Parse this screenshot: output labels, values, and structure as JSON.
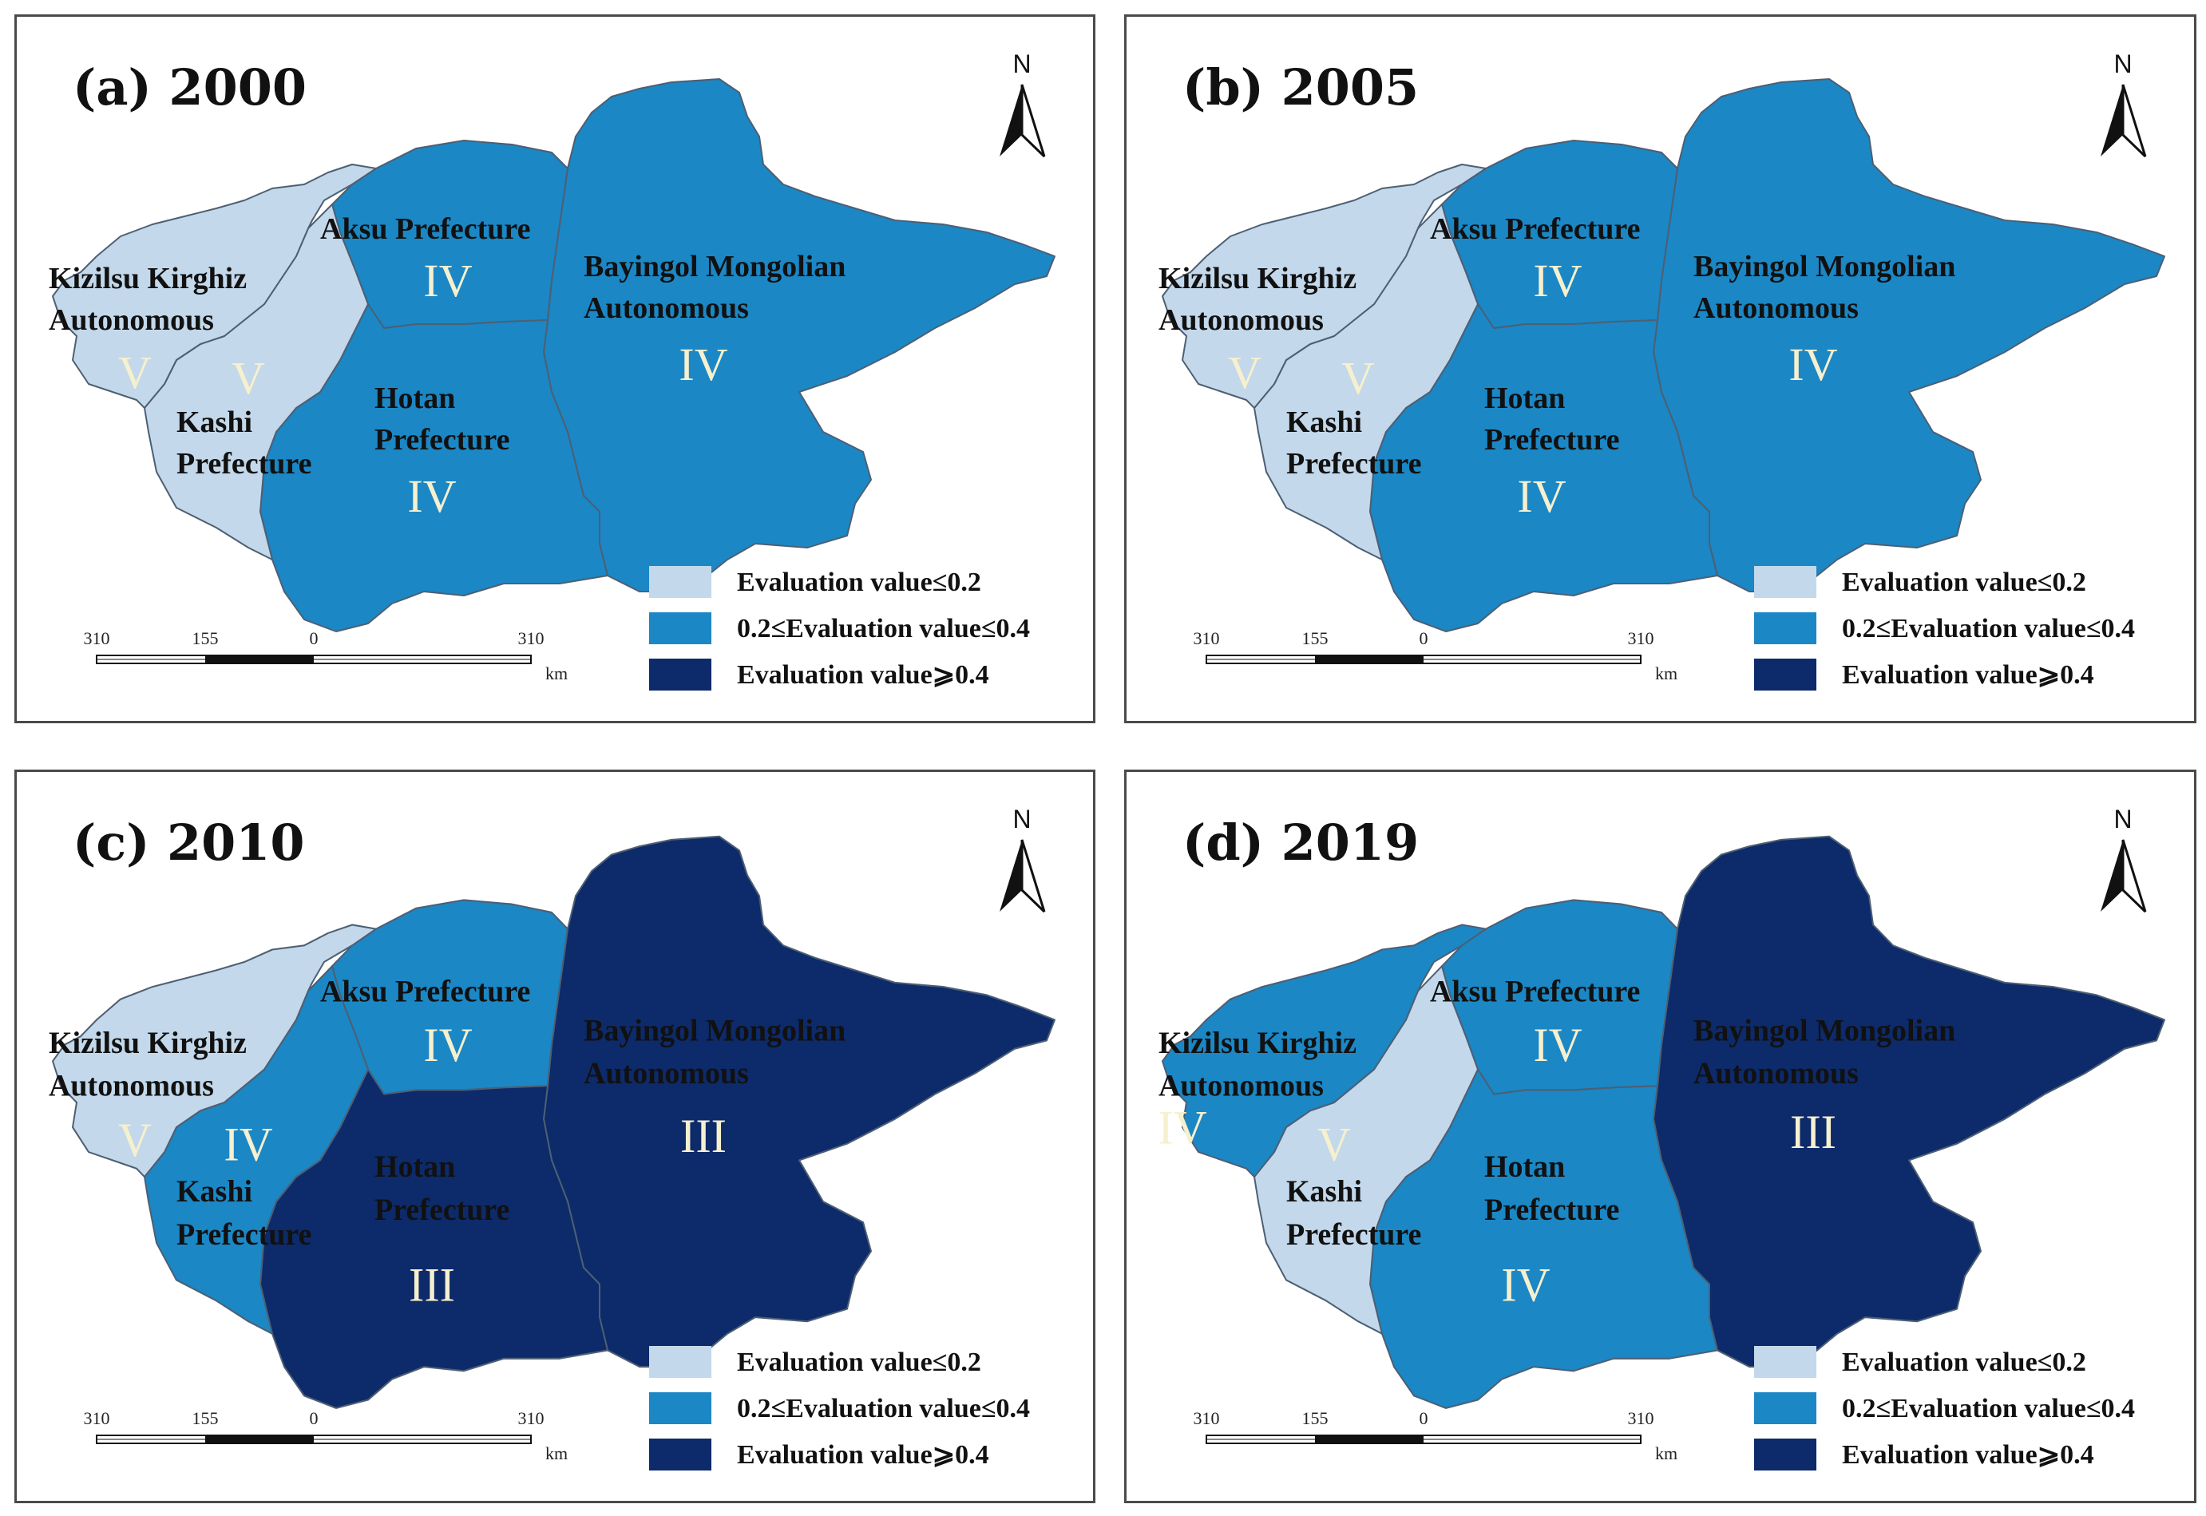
{
  "classes": {
    "low": {
      "color": "#c3d8ea"
    },
    "mid": {
      "color": "#1b87c5"
    },
    "high": {
      "color": "#0d2a6a"
    }
  },
  "legend": [
    {
      "label": "Evaluation value≤0.2",
      "class": "low"
    },
    {
      "label": "0.2≤Evaluation value≤0.4",
      "class": "mid"
    },
    {
      "label": "Evaluation value⩾0.4",
      "class": "high"
    }
  ],
  "scale": {
    "ticks": [
      "310",
      "155",
      "0",
      "310"
    ],
    "unit": "km"
  },
  "north_label": "N",
  "regions": {
    "kizilsu": {
      "line1": "Kizilsu Kirghiz",
      "line2": "Autonomous"
    },
    "kashi": {
      "line1": "Kashi",
      "line2": "Prefecture"
    },
    "aksu": {
      "line1": "Aksu Prefecture"
    },
    "hotan": {
      "line1": "Hotan",
      "line2": "Prefecture"
    },
    "bayingol": {
      "line1": "Bayingol Mongolian",
      "line2": "Autonomous"
    }
  },
  "panels": [
    {
      "title": "(a) 2000",
      "classes": {
        "kizilsu": "low",
        "kashi": "low",
        "aksu": "mid",
        "hotan": "mid",
        "bayingol": "mid"
      },
      "grades": {
        "kizilsu": "V",
        "kashi": "V",
        "aksu": "IV",
        "hotan": "IV",
        "bayingol": "IV"
      }
    },
    {
      "title": "(b) 2005",
      "classes": {
        "kizilsu": "low",
        "kashi": "low",
        "aksu": "mid",
        "hotan": "mid",
        "bayingol": "mid"
      },
      "grades": {
        "kizilsu": "V",
        "kashi": "V",
        "aksu": "IV",
        "hotan": "IV",
        "bayingol": "IV"
      }
    },
    {
      "title": "(c) 2010",
      "classes": {
        "kizilsu": "low",
        "kashi": "mid",
        "aksu": "mid",
        "hotan": "high",
        "bayingol": "high"
      },
      "grades": {
        "kizilsu": "V",
        "kashi": "IV",
        "aksu": "IV",
        "hotan": "III",
        "bayingol": "III"
      }
    },
    {
      "title": "(d) 2019",
      "classes": {
        "kizilsu": "mid",
        "kashi": "low",
        "aksu": "mid",
        "hotan": "mid",
        "bayingol": "high"
      },
      "grades": {
        "kizilsu": "IV",
        "kashi": "V",
        "aksu": "IV",
        "hotan": "IV",
        "bayingol": "III"
      }
    }
  ]
}
